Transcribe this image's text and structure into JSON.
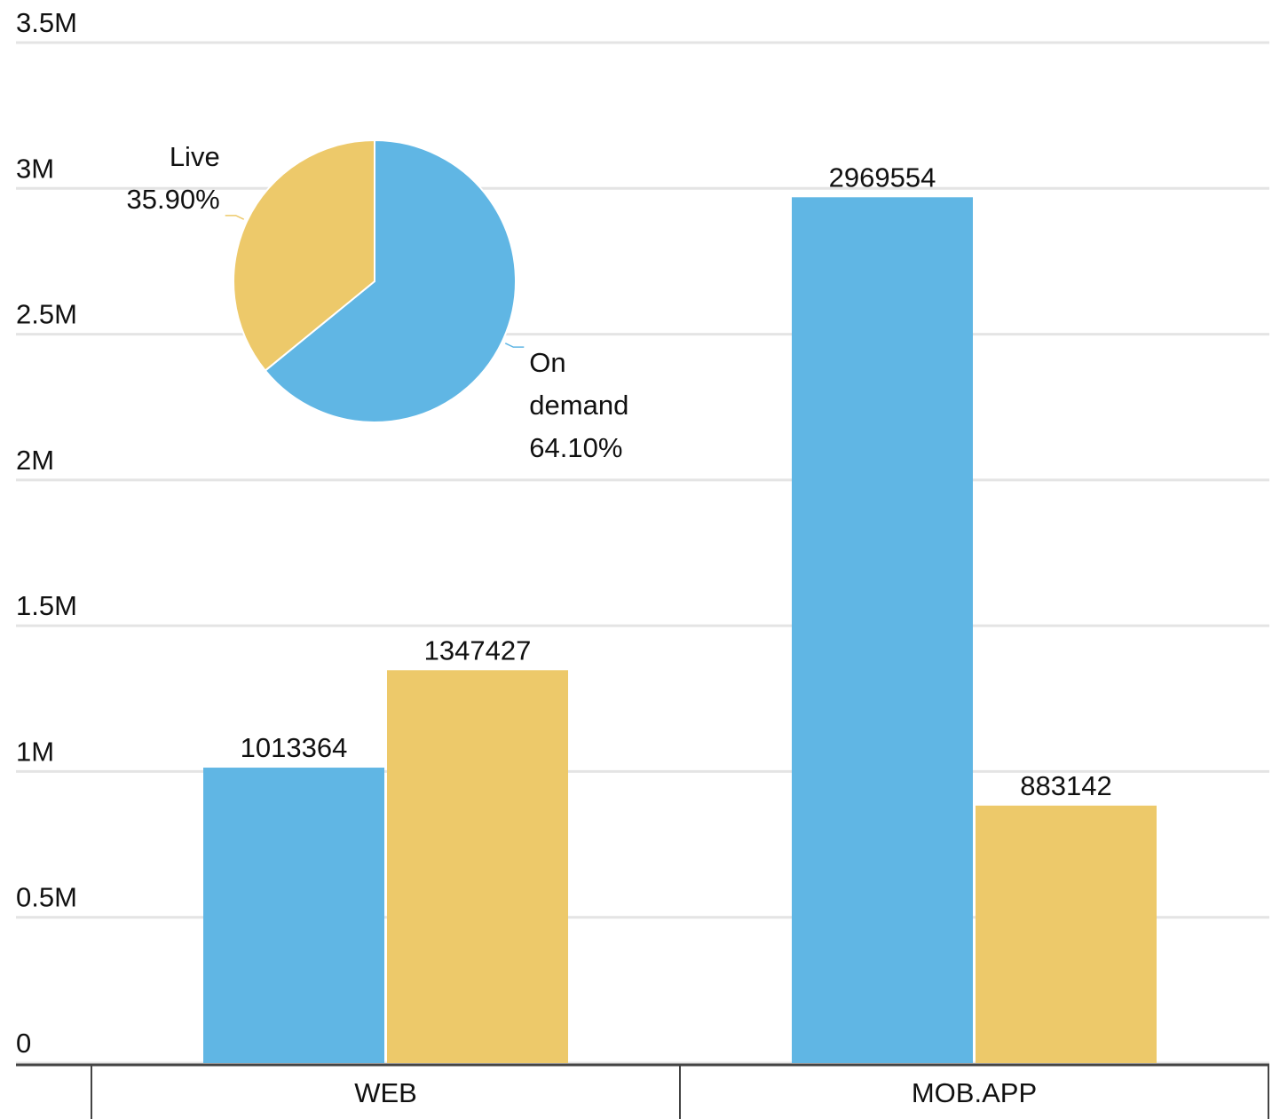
{
  "chart_data": [
    {
      "type": "bar",
      "categories": [
        "WEB",
        "MOB.APP"
      ],
      "series": [
        {
          "color": "#60b6e4",
          "values": [
            1013364,
            2969554
          ]
        },
        {
          "color": "#edc96a",
          "values": [
            1347427,
            883142
          ]
        }
      ],
      "ylim": [
        0,
        3500000
      ],
      "yticks": [
        0,
        {
          "value": 500000,
          "label": "0.5M"
        },
        {
          "value": 1000000,
          "label": "1M"
        },
        {
          "value": 1500000,
          "label": "1.5M"
        },
        {
          "value": 2000000,
          "label": "2M"
        },
        {
          "value": 2500000,
          "label": "2.5M"
        },
        {
          "value": 3000000,
          "label": "3M"
        },
        {
          "value": 3500000,
          "label": "3.5M"
        }
      ],
      "grid": true
    },
    {
      "type": "pie",
      "categories": [
        "On demand",
        "Live"
      ],
      "values": [
        64.1,
        35.9
      ],
      "value_labels": [
        "64.10%",
        "35.90%"
      ],
      "colors": [
        "#60b6e4",
        "#edc96a"
      ]
    }
  ]
}
